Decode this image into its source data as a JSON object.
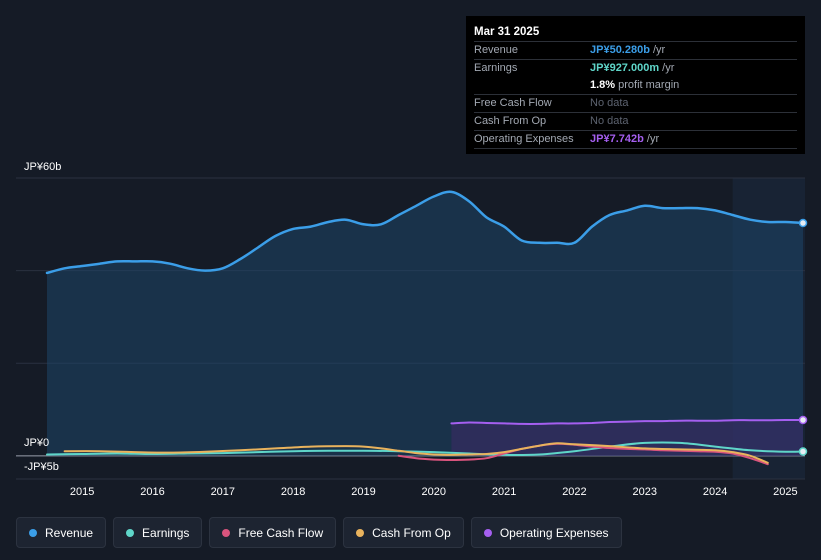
{
  "tooltip": {
    "date": "Mar 31 2025",
    "rows": [
      {
        "key": "Revenue",
        "value": "JP¥50.280b",
        "unit": " /yr",
        "color": "#3b9ee8"
      },
      {
        "key": "Earnings",
        "value": "JP¥927.000m",
        "unit": " /yr",
        "color": "#5fd6c9"
      },
      {
        "key": "",
        "value": "1.8%",
        "unit": " profit margin",
        "color": "#ffffff"
      },
      {
        "key": "Free Cash Flow",
        "value": "No data",
        "unit": "",
        "color": ""
      },
      {
        "key": "Cash From Op",
        "value": "No data",
        "unit": "",
        "color": ""
      },
      {
        "key": "Operating Expenses",
        "value": "JP¥7.742b",
        "unit": " /yr",
        "color": "#a55ff0"
      }
    ]
  },
  "legend": [
    {
      "label": "Revenue",
      "color": "#3b9ee8"
    },
    {
      "label": "Earnings",
      "color": "#5fd6c9"
    },
    {
      "label": "Free Cash Flow",
      "color": "#d9547d"
    },
    {
      "label": "Cash From Op",
      "color": "#e9b35d"
    },
    {
      "label": "Operating Expenses",
      "color": "#a55ff0"
    }
  ],
  "chart_data": {
    "type": "area",
    "title": "",
    "xlabel": "",
    "ylabel": "",
    "ylim": [
      -5,
      60
    ],
    "y_axis_labels": {
      "top": "JP¥60b",
      "zero": "JP¥0",
      "bottom": "-JP¥5b"
    },
    "x_ticks": [
      "2015",
      "2016",
      "2017",
      "2018",
      "2019",
      "2020",
      "2021",
      "2022",
      "2023",
      "2024",
      "2025"
    ],
    "x_tick_values": [
      2015,
      2016,
      2017,
      2018,
      2019,
      2020,
      2021,
      2022,
      2023,
      2024,
      2025
    ],
    "x_range": [
      2014.5,
      2025.25
    ],
    "forecast_start": 2024.25,
    "series": [
      {
        "name": "Revenue",
        "color": "#3b9ee8",
        "fill": true,
        "x": [
          2014.5,
          2014.75,
          2015.0,
          2015.25,
          2015.5,
          2015.75,
          2016.0,
          2016.25,
          2016.5,
          2016.75,
          2017.0,
          2017.25,
          2017.5,
          2017.75,
          2018.0,
          2018.25,
          2018.5,
          2018.75,
          2019.0,
          2019.25,
          2019.5,
          2019.75,
          2020.0,
          2020.25,
          2020.5,
          2020.75,
          2021.0,
          2021.25,
          2021.5,
          2021.75,
          2022.0,
          2022.25,
          2022.5,
          2022.75,
          2023.0,
          2023.25,
          2023.5,
          2023.75,
          2024.0,
          2024.25,
          2024.5,
          2024.75,
          2025.0,
          2025.25
        ],
        "values": [
          39.5,
          40.5,
          41.0,
          41.5,
          42.0,
          42.0,
          42.0,
          41.5,
          40.5,
          40.0,
          40.5,
          42.5,
          45.0,
          47.5,
          49.0,
          49.5,
          50.5,
          51.0,
          50.0,
          50.0,
          52.0,
          54.0,
          56.0,
          57.0,
          55.0,
          51.5,
          49.5,
          46.5,
          46.0,
          46.0,
          46.0,
          49.5,
          52.0,
          53.0,
          54.0,
          53.5,
          53.5,
          53.5,
          53.0,
          52.0,
          51.0,
          50.5,
          50.5,
          50.28
        ]
      },
      {
        "name": "Earnings",
        "color": "#5fd6c9",
        "fill": false,
        "x": [
          2014.5,
          2015.0,
          2015.5,
          2016.0,
          2016.5,
          2017.0,
          2017.5,
          2018.0,
          2018.5,
          2019.0,
          2019.5,
          2020.0,
          2020.5,
          2021.0,
          2021.5,
          2022.0,
          2022.5,
          2023.0,
          2023.5,
          2024.0,
          2024.5,
          2025.0,
          2025.25
        ],
        "values": [
          0.3,
          0.4,
          0.5,
          0.4,
          0.5,
          0.6,
          0.8,
          1.0,
          1.1,
          1.1,
          1.0,
          0.8,
          0.5,
          0.2,
          0.3,
          1.0,
          2.0,
          2.8,
          2.8,
          2.0,
          1.2,
          0.9,
          0.927
        ]
      },
      {
        "name": "Free Cash Flow",
        "color": "#d9547d",
        "fill": false,
        "x": [
          2019.5,
          2019.75,
          2020.0,
          2020.25,
          2020.5,
          2020.75,
          2021.0,
          2021.25,
          2021.5,
          2021.75,
          2022.0,
          2022.25,
          2022.5,
          2022.75,
          2023.0,
          2023.25,
          2023.5,
          2023.75,
          2024.0,
          2024.25,
          2024.5,
          2024.75
        ],
        "values": [
          0.0,
          -0.5,
          -0.8,
          -0.9,
          -0.8,
          -0.5,
          0.5,
          1.5,
          2.2,
          2.6,
          2.4,
          2.0,
          1.7,
          1.5,
          1.4,
          1.2,
          1.1,
          1.0,
          0.9,
          0.5,
          -0.5,
          -1.8
        ]
      },
      {
        "name": "Cash From Op",
        "color": "#e9b35d",
        "fill": false,
        "x": [
          2014.75,
          2015.25,
          2015.75,
          2016.25,
          2016.75,
          2017.25,
          2017.75,
          2018.25,
          2018.75,
          2019.0,
          2019.25,
          2019.5,
          2019.75,
          2020.0,
          2020.25,
          2020.5,
          2020.75,
          2021.0,
          2021.25,
          2021.5,
          2021.75,
          2022.0,
          2022.5,
          2023.0,
          2023.5,
          2024.0,
          2024.25,
          2024.5,
          2024.75
        ],
        "values": [
          1.0,
          1.0,
          0.8,
          0.7,
          0.9,
          1.2,
          1.6,
          2.0,
          2.1,
          2.0,
          1.6,
          1.1,
          0.6,
          0.3,
          0.2,
          0.3,
          0.4,
          0.8,
          1.5,
          2.2,
          2.7,
          2.5,
          2.1,
          1.6,
          1.4,
          1.2,
          0.8,
          0.0,
          -1.5
        ]
      },
      {
        "name": "Operating Expenses",
        "color": "#a55ff0",
        "fill": true,
        "x": [
          2020.25,
          2020.5,
          2020.75,
          2021.0,
          2021.25,
          2021.5,
          2021.75,
          2022.0,
          2022.25,
          2022.5,
          2022.75,
          2023.0,
          2023.25,
          2023.5,
          2023.75,
          2024.0,
          2024.25,
          2024.5,
          2024.75,
          2025.0,
          2025.25
        ],
        "values": [
          7.0,
          7.2,
          7.1,
          7.0,
          6.9,
          6.9,
          7.0,
          7.0,
          7.1,
          7.3,
          7.4,
          7.5,
          7.5,
          7.6,
          7.6,
          7.6,
          7.7,
          7.7,
          7.7,
          7.74,
          7.742
        ]
      }
    ]
  }
}
